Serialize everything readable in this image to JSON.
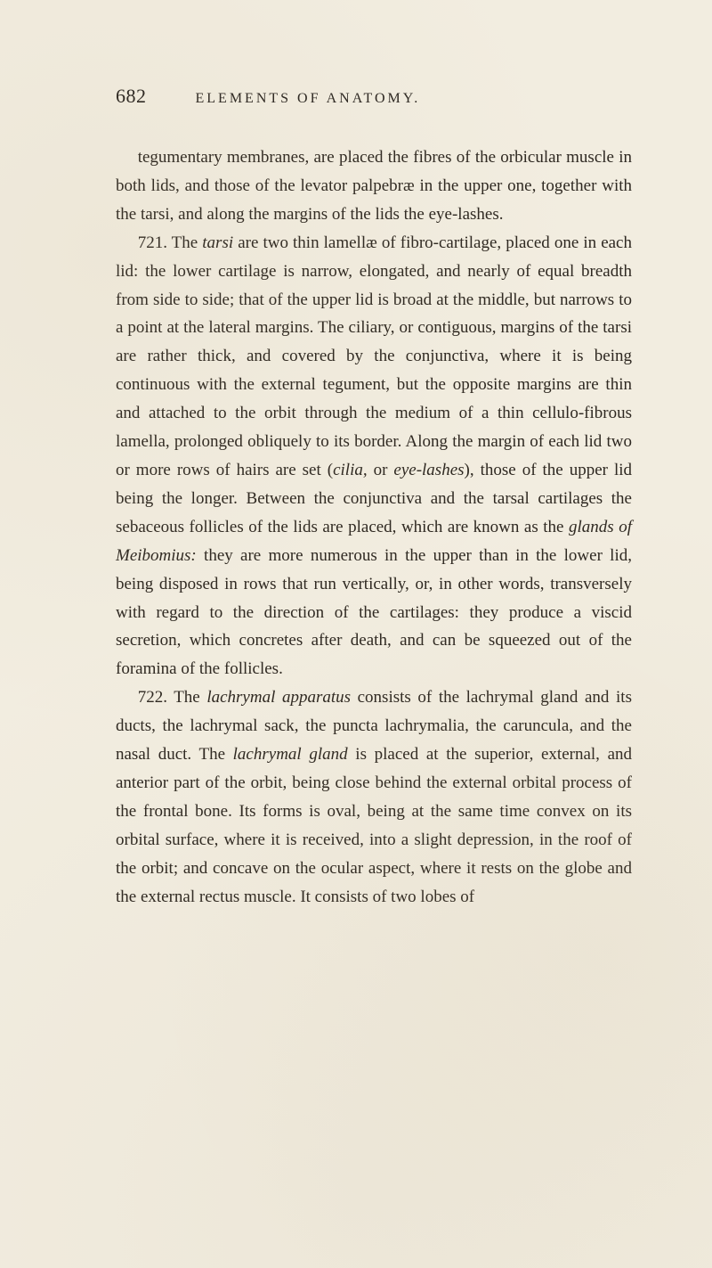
{
  "page": {
    "number": "682",
    "running_title": "ELEMENTS OF ANATOMY.",
    "background_color": "#f2ede0",
    "text_color": "#2a2520",
    "body_fontsize": 19,
    "line_height": 1.68,
    "header_fontsize": 16,
    "pagenum_fontsize": 22
  },
  "paragraphs": {
    "p1_a": "tegumentary membranes, are placed the fibres of the orbi­cular muscle in both lids, and those of the levator palpebræ in the upper one, together with the tarsi, and along the margins of the lids the eye-lashes.",
    "p2_a": "721. The ",
    "p2_b": "tarsi",
    "p2_c": " are two thin lamellæ of fibro-cartilage, placed one in each lid: the lower cartilage is narrow, elongated, and nearly of equal breadth from side to side; that of the upper lid is broad at the middle, but narrows to a point at the lateral margins. The ciliary, or contiguous, margins of the tarsi are rather thick, and covered by the conjunctiva, where it is being continuous with the exter­nal tegument, but the opposite margins are thin and at­tached to the orbit through the medium of a thin cellulo-fibrous lamella, prolonged obliquely to its border. Along the margin of each lid two or more rows of hairs are set (",
    "p2_d": "cilia,",
    "p2_e": " or ",
    "p2_f": "eye-lashes",
    "p2_g": "), those of the upper lid being the longer. Between the conjunctiva and the tarsal car­tilages the sebaceous follicles of the lids are placed, which are known as the ",
    "p2_h": "glands of Meibomius:",
    "p2_i": " they are more numerous in the upper than in the lower lid, being disposed in rows that run vertically, or, in other words, transversely with regard to the direction of the cartilages: they produce a viscid secretion, which concretes after death, and can be squeezed out of the foramina of the follicles.",
    "p3_a": "722. The ",
    "p3_b": "lachrymal apparatus",
    "p3_c": " consists of the lachrymal gland and its ducts, the lachrymal sack, the puncta lachry­malia, the caruncula, and the nasal duct. The ",
    "p3_d": "lachrymal gland",
    "p3_e": " is placed at the superior, external, and anterior part of the orbit, being close behind the external orbital process of the frontal bone. Its forms is oval, being at the same time convex on its orbital surface, where it is received, into a slight depression, in the roof of the orbit; and con­cave on the ocular aspect, where it rests on the globe and the external rectus muscle. It consists of two lobes of"
  }
}
